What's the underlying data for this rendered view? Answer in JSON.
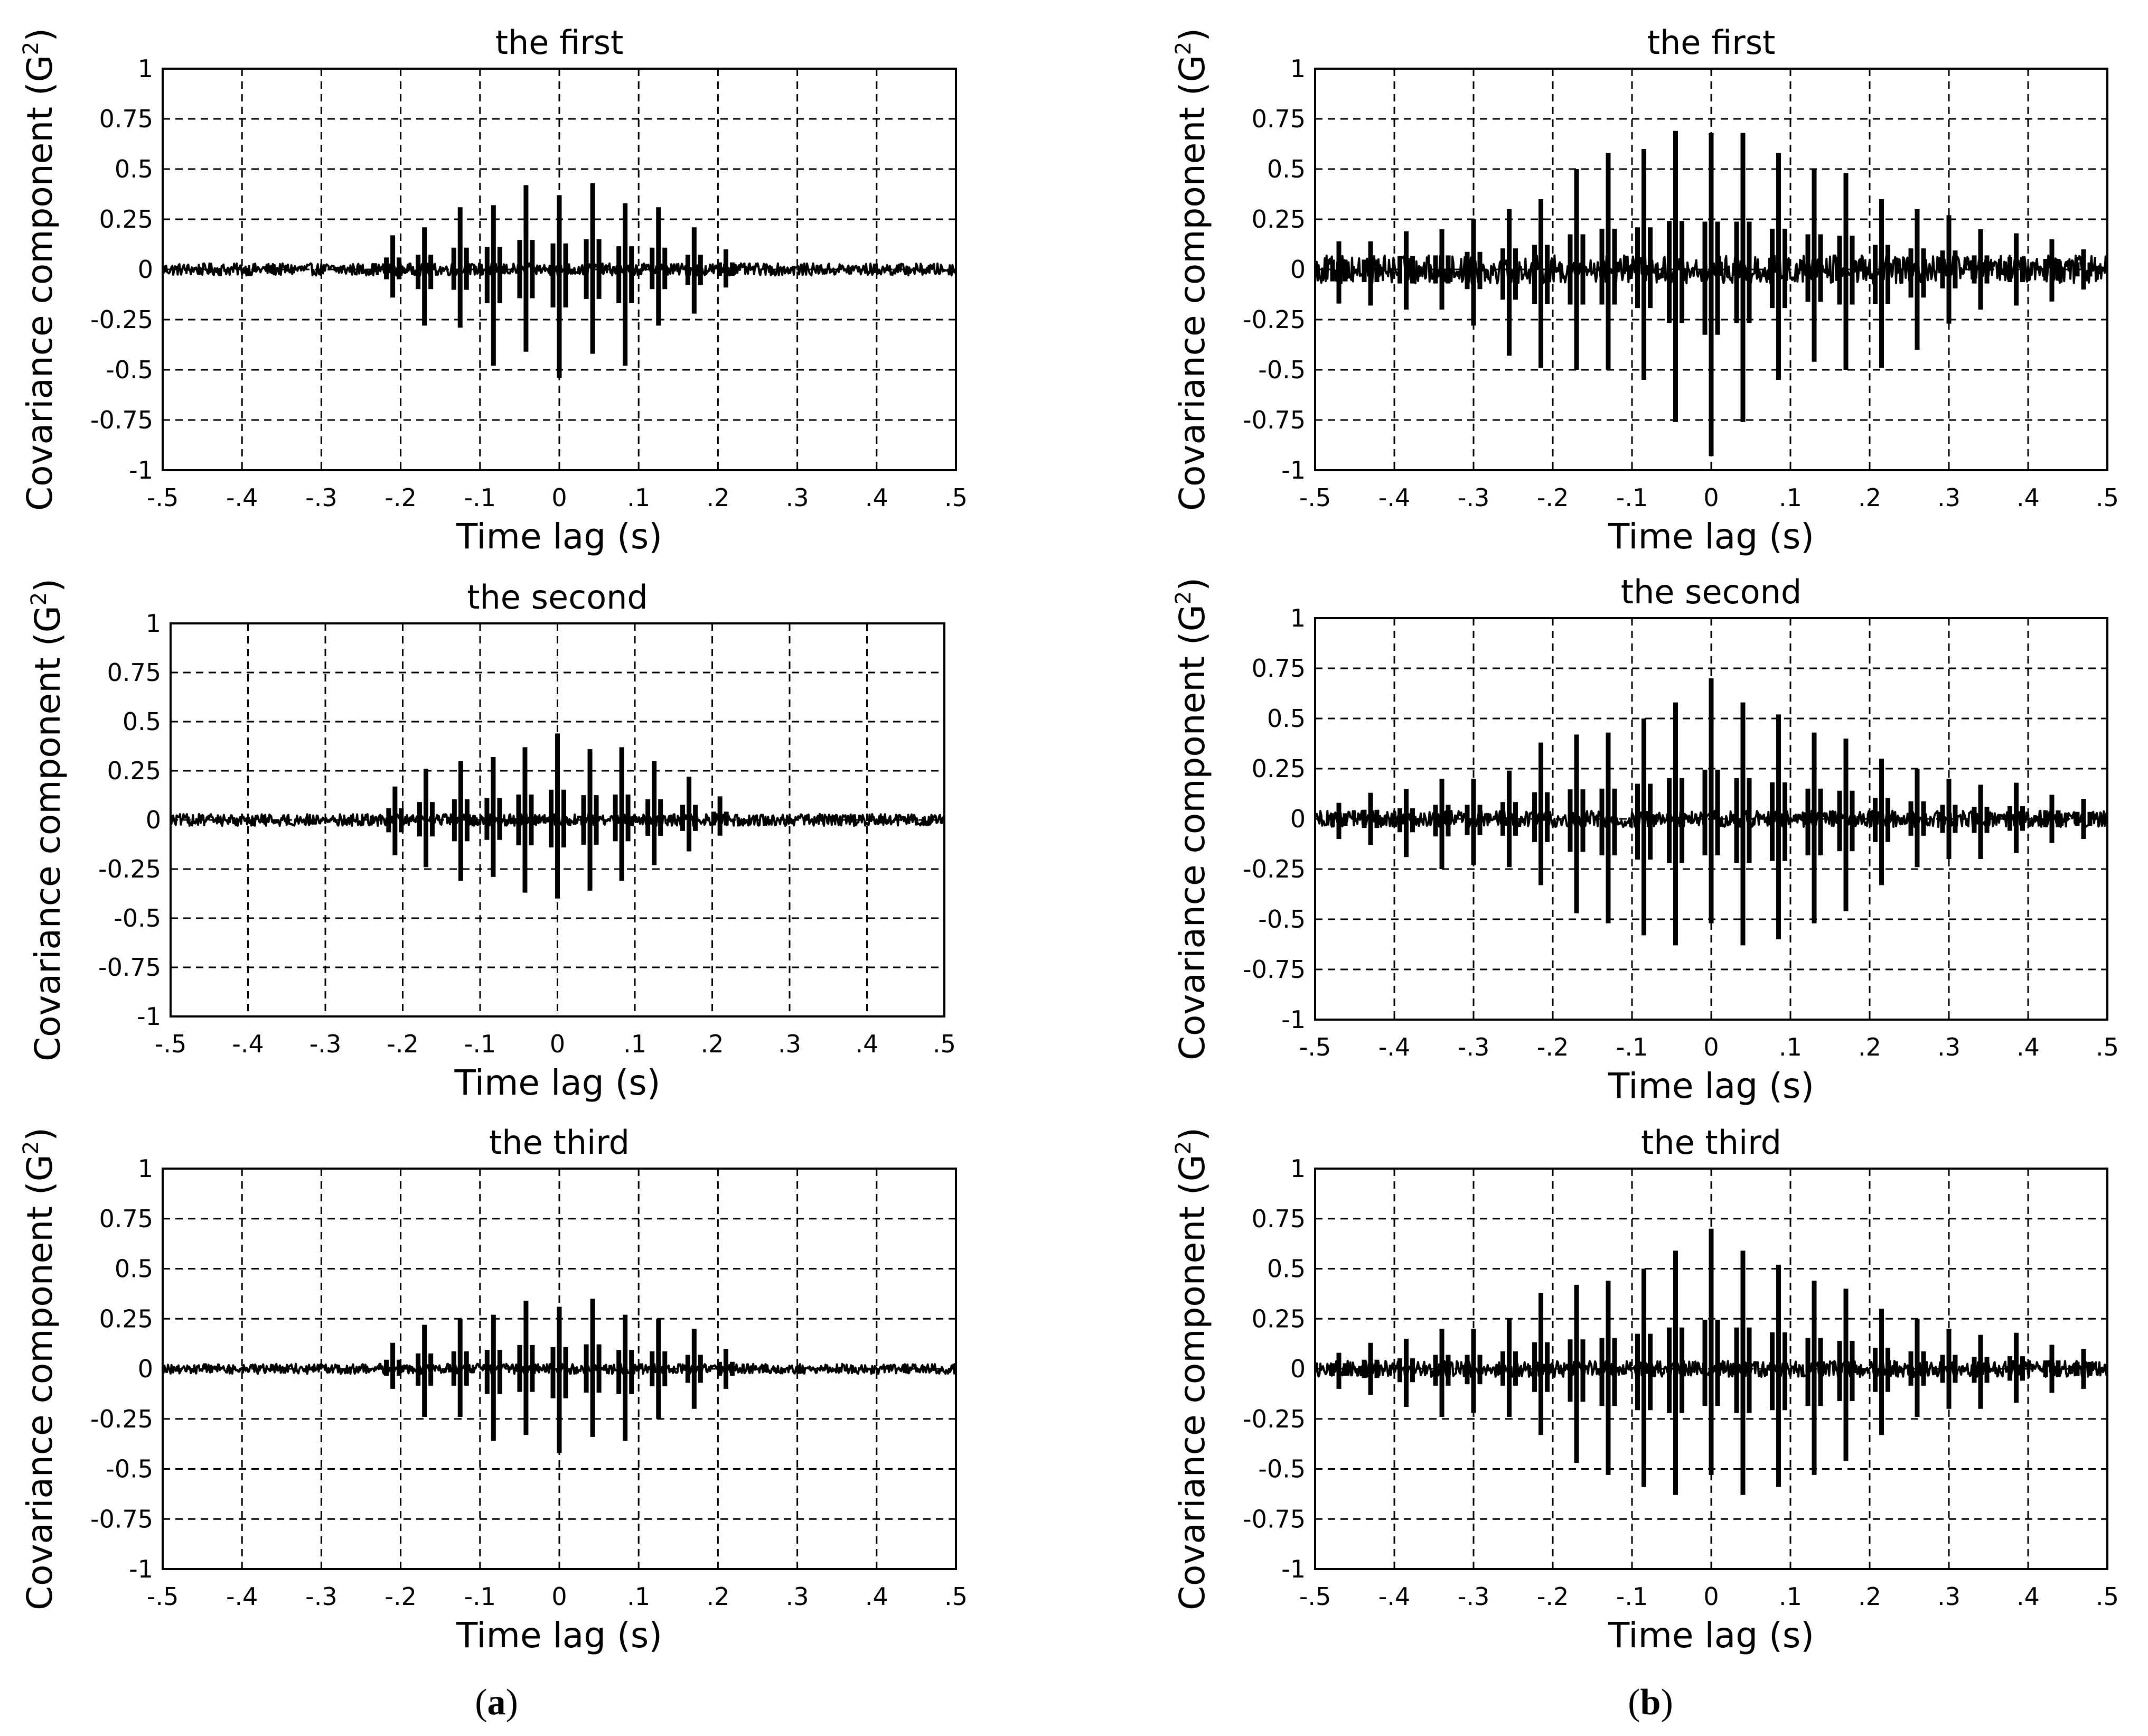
{
  "figure": {
    "panel_labels": [
      {
        "open": "(",
        "letter": "a",
        "close": ")"
      },
      {
        "open": "(",
        "letter": "b",
        "close": ")"
      }
    ]
  },
  "chart_data": [
    {
      "id": "a1",
      "type": "line",
      "title": "the first",
      "xlabel": "Time lag (s)",
      "ylabel": "Covariance component (G",
      "ylabel_sup": "2",
      "ylabel_close": ")",
      "xlim": [
        -0.5,
        0.5
      ],
      "ylim": [
        -1,
        1
      ],
      "grid": true,
      "xticks": [
        -0.5,
        -0.4,
        -0.3,
        -0.2,
        -0.1,
        0,
        0.1,
        0.2,
        0.3,
        0.4,
        0.5
      ],
      "yticks": [
        1,
        0.75,
        0.5,
        0.25,
        0,
        -0.25,
        -0.5,
        -0.75,
        -1
      ],
      "noise": 0.03,
      "spikes": [
        {
          "t": -0.21,
          "pos": 0.17,
          "neg": -0.14
        },
        {
          "t": -0.17,
          "pos": 0.21,
          "neg": -0.28
        },
        {
          "t": -0.125,
          "pos": 0.31,
          "neg": -0.29
        },
        {
          "t": -0.083,
          "pos": 0.32,
          "neg": -0.48
        },
        {
          "t": -0.042,
          "pos": 0.42,
          "neg": -0.41
        },
        {
          "t": 0.0,
          "pos": 0.37,
          "neg": -0.54
        },
        {
          "t": 0.042,
          "pos": 0.43,
          "neg": -0.42
        },
        {
          "t": 0.083,
          "pos": 0.33,
          "neg": -0.48
        },
        {
          "t": 0.125,
          "pos": 0.31,
          "neg": -0.28
        },
        {
          "t": 0.17,
          "pos": 0.21,
          "neg": -0.22
        },
        {
          "t": 0.21,
          "pos": 0.1,
          "neg": -0.09
        }
      ]
    },
    {
      "id": "b1",
      "type": "line",
      "title": "the first",
      "xlabel": "Time lag (s)",
      "ylabel": "Covariance component (G",
      "ylabel_sup": "2",
      "ylabel_close": ")",
      "xlim": [
        -0.5,
        0.5
      ],
      "ylim": [
        -1,
        1
      ],
      "grid": true,
      "xticks": [
        -0.5,
        -0.4,
        -0.3,
        -0.2,
        -0.1,
        0,
        0.1,
        0.2,
        0.3,
        0.4,
        0.5
      ],
      "yticks": [
        1,
        0.75,
        0.5,
        0.25,
        0,
        -0.25,
        -0.5,
        -0.75,
        -1
      ],
      "noise": 0.07,
      "spikes": [
        {
          "t": -0.47,
          "pos": 0.14,
          "neg": -0.17
        },
        {
          "t": -0.43,
          "pos": 0.14,
          "neg": -0.18
        },
        {
          "t": -0.385,
          "pos": 0.19,
          "neg": -0.2
        },
        {
          "t": -0.34,
          "pos": 0.2,
          "neg": -0.2
        },
        {
          "t": -0.3,
          "pos": 0.25,
          "neg": -0.28
        },
        {
          "t": -0.255,
          "pos": 0.3,
          "neg": -0.43
        },
        {
          "t": -0.215,
          "pos": 0.35,
          "neg": -0.49
        },
        {
          "t": -0.17,
          "pos": 0.5,
          "neg": -0.5
        },
        {
          "t": -0.13,
          "pos": 0.58,
          "neg": -0.5
        },
        {
          "t": -0.085,
          "pos": 0.6,
          "neg": -0.55
        },
        {
          "t": -0.045,
          "pos": 0.69,
          "neg": -0.76
        },
        {
          "t": 0.0,
          "pos": 0.68,
          "neg": -0.93
        },
        {
          "t": 0.04,
          "pos": 0.68,
          "neg": -0.76
        },
        {
          "t": 0.085,
          "pos": 0.58,
          "neg": -0.55
        },
        {
          "t": 0.13,
          "pos": 0.5,
          "neg": -0.46
        },
        {
          "t": 0.17,
          "pos": 0.48,
          "neg": -0.5
        },
        {
          "t": 0.215,
          "pos": 0.35,
          "neg": -0.49
        },
        {
          "t": 0.26,
          "pos": 0.3,
          "neg": -0.4
        },
        {
          "t": 0.3,
          "pos": 0.27,
          "neg": -0.27
        },
        {
          "t": 0.34,
          "pos": 0.2,
          "neg": -0.2
        },
        {
          "t": 0.385,
          "pos": 0.18,
          "neg": -0.18
        },
        {
          "t": 0.43,
          "pos": 0.15,
          "neg": -0.16
        },
        {
          "t": 0.47,
          "pos": 0.1,
          "neg": -0.1
        }
      ]
    },
    {
      "id": "a2",
      "type": "line",
      "title": "the second",
      "xlabel": "Time lag (s)",
      "ylabel": "Covariance component (G",
      "ylabel_sup": "2",
      "ylabel_close": ")",
      "xlim": [
        -0.5,
        0.5
      ],
      "ylim": [
        -1,
        1
      ],
      "grid": true,
      "xticks": [
        -0.5,
        -0.4,
        -0.3,
        -0.2,
        -0.1,
        0,
        0.1,
        0.2,
        0.3,
        0.4,
        0.5
      ],
      "yticks": [
        1,
        0.75,
        0.5,
        0.25,
        0,
        -0.25,
        -0.5,
        -0.75,
        -1
      ],
      "noise": 0.03,
      "spikes": [
        {
          "t": -0.21,
          "pos": 0.17,
          "neg": -0.18
        },
        {
          "t": -0.17,
          "pos": 0.26,
          "neg": -0.24
        },
        {
          "t": -0.125,
          "pos": 0.3,
          "neg": -0.31
        },
        {
          "t": -0.083,
          "pos": 0.32,
          "neg": -0.29
        },
        {
          "t": -0.042,
          "pos": 0.37,
          "neg": -0.37
        },
        {
          "t": 0.0,
          "pos": 0.44,
          "neg": -0.4
        },
        {
          "t": 0.042,
          "pos": 0.36,
          "neg": -0.36
        },
        {
          "t": 0.083,
          "pos": 0.37,
          "neg": -0.31
        },
        {
          "t": 0.125,
          "pos": 0.3,
          "neg": -0.23
        },
        {
          "t": 0.17,
          "pos": 0.22,
          "neg": -0.16
        },
        {
          "t": 0.21,
          "pos": 0.12,
          "neg": -0.08
        }
      ]
    },
    {
      "id": "b2",
      "type": "line",
      "title": "the second",
      "xlabel": "Time lag (s)",
      "ylabel": "Covariance component (G",
      "ylabel_sup": "2",
      "ylabel_close": ")",
      "xlim": [
        -0.5,
        0.5
      ],
      "ylim": [
        -1,
        1
      ],
      "grid": true,
      "xticks": [
        -0.5,
        -0.4,
        -0.3,
        -0.2,
        -0.1,
        0,
        0.1,
        0.2,
        0.3,
        0.4,
        0.5
      ],
      "yticks": [
        1,
        0.75,
        0.5,
        0.25,
        0,
        -0.25,
        -0.5,
        -0.75,
        -1
      ],
      "noise": 0.04,
      "spikes": [
        {
          "t": -0.47,
          "pos": 0.08,
          "neg": -0.1
        },
        {
          "t": -0.43,
          "pos": 0.13,
          "neg": -0.13
        },
        {
          "t": -0.385,
          "pos": 0.15,
          "neg": -0.19
        },
        {
          "t": -0.34,
          "pos": 0.2,
          "neg": -0.25
        },
        {
          "t": -0.3,
          "pos": 0.2,
          "neg": -0.23
        },
        {
          "t": -0.255,
          "pos": 0.24,
          "neg": -0.24
        },
        {
          "t": -0.215,
          "pos": 0.38,
          "neg": -0.33
        },
        {
          "t": -0.17,
          "pos": 0.42,
          "neg": -0.47
        },
        {
          "t": -0.13,
          "pos": 0.43,
          "neg": -0.52
        },
        {
          "t": -0.085,
          "pos": 0.5,
          "neg": -0.58
        },
        {
          "t": -0.045,
          "pos": 0.58,
          "neg": -0.63
        },
        {
          "t": 0.0,
          "pos": 0.7,
          "neg": -0.52
        },
        {
          "t": 0.04,
          "pos": 0.58,
          "neg": -0.63
        },
        {
          "t": 0.085,
          "pos": 0.52,
          "neg": -0.6
        },
        {
          "t": 0.13,
          "pos": 0.43,
          "neg": -0.52
        },
        {
          "t": 0.17,
          "pos": 0.4,
          "neg": -0.46
        },
        {
          "t": 0.215,
          "pos": 0.3,
          "neg": -0.33
        },
        {
          "t": 0.26,
          "pos": 0.25,
          "neg": -0.24
        },
        {
          "t": 0.3,
          "pos": 0.2,
          "neg": -0.2
        },
        {
          "t": 0.34,
          "pos": 0.17,
          "neg": -0.2
        },
        {
          "t": 0.385,
          "pos": 0.18,
          "neg": -0.17
        },
        {
          "t": 0.43,
          "pos": 0.12,
          "neg": -0.12
        },
        {
          "t": 0.47,
          "pos": 0.1,
          "neg": -0.1
        }
      ]
    },
    {
      "id": "a3",
      "type": "line",
      "title": "the third",
      "xlabel": "Time lag (s)",
      "ylabel": "Covariance component (G",
      "ylabel_sup": "2",
      "ylabel_close": ")",
      "xlim": [
        -0.5,
        0.5
      ],
      "ylim": [
        -1,
        1
      ],
      "grid": true,
      "xticks": [
        -0.5,
        -0.4,
        -0.3,
        -0.2,
        -0.1,
        0,
        0.1,
        0.2,
        0.3,
        0.4,
        0.5
      ],
      "yticks": [
        1,
        0.75,
        0.5,
        0.25,
        0,
        -0.25,
        -0.5,
        -0.75,
        -1
      ],
      "noise": 0.025,
      "spikes": [
        {
          "t": -0.21,
          "pos": 0.13,
          "neg": -0.1
        },
        {
          "t": -0.17,
          "pos": 0.22,
          "neg": -0.24
        },
        {
          "t": -0.125,
          "pos": 0.25,
          "neg": -0.24
        },
        {
          "t": -0.083,
          "pos": 0.27,
          "neg": -0.36
        },
        {
          "t": -0.042,
          "pos": 0.34,
          "neg": -0.33
        },
        {
          "t": 0.0,
          "pos": 0.31,
          "neg": -0.42
        },
        {
          "t": 0.042,
          "pos": 0.35,
          "neg": -0.34
        },
        {
          "t": 0.083,
          "pos": 0.27,
          "neg": -0.36
        },
        {
          "t": 0.125,
          "pos": 0.25,
          "neg": -0.25
        },
        {
          "t": 0.17,
          "pos": 0.2,
          "neg": -0.2
        },
        {
          "t": 0.21,
          "pos": 0.1,
          "neg": -0.1
        }
      ]
    },
    {
      "id": "b3",
      "type": "line",
      "title": "the third",
      "xlabel": "Time lag (s)",
      "ylabel": "Covariance component (G",
      "ylabel_sup": "2",
      "ylabel_close": ")",
      "xlim": [
        -0.5,
        0.5
      ],
      "ylim": [
        -1,
        1
      ],
      "grid": true,
      "xticks": [
        -0.5,
        -0.4,
        -0.3,
        -0.2,
        -0.1,
        0,
        0.1,
        0.2,
        0.3,
        0.4,
        0.5
      ],
      "yticks": [
        1,
        0.75,
        0.5,
        0.25,
        0,
        -0.25,
        -0.5,
        -0.75,
        -1
      ],
      "noise": 0.04,
      "spikes": [
        {
          "t": -0.47,
          "pos": 0.08,
          "neg": -0.1
        },
        {
          "t": -0.43,
          "pos": 0.13,
          "neg": -0.13
        },
        {
          "t": -0.385,
          "pos": 0.15,
          "neg": -0.19
        },
        {
          "t": -0.34,
          "pos": 0.2,
          "neg": -0.24
        },
        {
          "t": -0.3,
          "pos": 0.2,
          "neg": -0.22
        },
        {
          "t": -0.255,
          "pos": 0.25,
          "neg": -0.24
        },
        {
          "t": -0.215,
          "pos": 0.38,
          "neg": -0.33
        },
        {
          "t": -0.17,
          "pos": 0.42,
          "neg": -0.47
        },
        {
          "t": -0.13,
          "pos": 0.44,
          "neg": -0.53
        },
        {
          "t": -0.085,
          "pos": 0.5,
          "neg": -0.59
        },
        {
          "t": -0.045,
          "pos": 0.59,
          "neg": -0.63
        },
        {
          "t": 0.0,
          "pos": 0.7,
          "neg": -0.53
        },
        {
          "t": 0.04,
          "pos": 0.59,
          "neg": -0.63
        },
        {
          "t": 0.085,
          "pos": 0.52,
          "neg": -0.59
        },
        {
          "t": 0.13,
          "pos": 0.44,
          "neg": -0.53
        },
        {
          "t": 0.17,
          "pos": 0.4,
          "neg": -0.46
        },
        {
          "t": 0.215,
          "pos": 0.3,
          "neg": -0.33
        },
        {
          "t": 0.26,
          "pos": 0.25,
          "neg": -0.24
        },
        {
          "t": 0.3,
          "pos": 0.2,
          "neg": -0.2
        },
        {
          "t": 0.34,
          "pos": 0.17,
          "neg": -0.2
        },
        {
          "t": 0.385,
          "pos": 0.18,
          "neg": -0.17
        },
        {
          "t": 0.43,
          "pos": 0.12,
          "neg": -0.12
        },
        {
          "t": 0.47,
          "pos": 0.1,
          "neg": -0.1
        }
      ]
    }
  ]
}
